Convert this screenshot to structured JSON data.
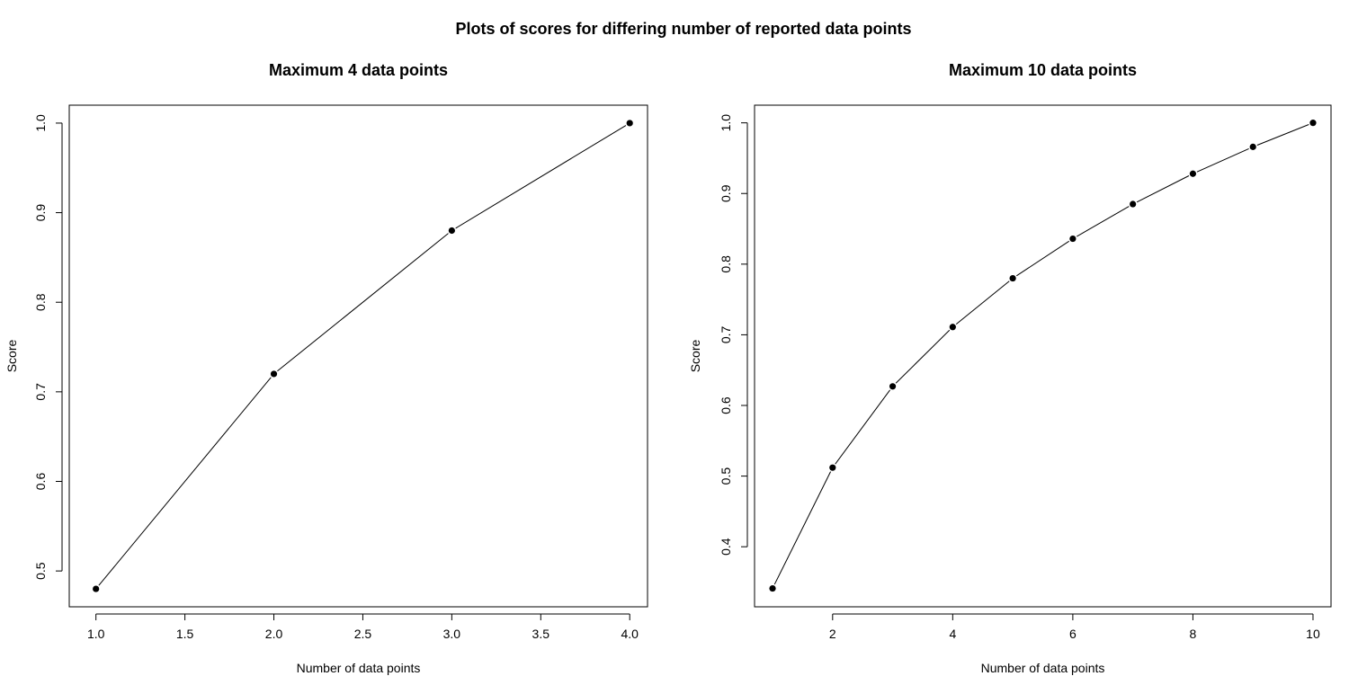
{
  "figure": {
    "title": "Plots of scores for differing number of reported data points"
  },
  "chart_data": [
    {
      "type": "line",
      "title": "Maximum 4 data points",
      "xlabel": "Number of data points",
      "ylabel": "Score",
      "x": [
        1,
        2,
        3,
        4
      ],
      "y": [
        0.48,
        0.72,
        0.88,
        1.0
      ],
      "xlim": [
        0.85,
        4.1
      ],
      "ylim": [
        0.46,
        1.02
      ],
      "xticks": [
        1.0,
        1.5,
        2.0,
        2.5,
        3.0,
        3.5,
        4.0
      ],
      "xtick_labels": [
        "1.0",
        "1.5",
        "2.0",
        "2.5",
        "3.0",
        "3.5",
        "4.0"
      ],
      "yticks": [
        0.5,
        0.6,
        0.7,
        0.8,
        0.9,
        1.0
      ],
      "ytick_labels": [
        "0.5",
        "0.6",
        "0.7",
        "0.8",
        "0.9",
        "1.0"
      ],
      "grid": false,
      "markers": "filled-circle",
      "line_color": "#000000"
    },
    {
      "type": "line",
      "title": "Maximum 10 data points",
      "xlabel": "Number of data points",
      "ylabel": "Score",
      "x": [
        1,
        2,
        3,
        4,
        5,
        6,
        7,
        8,
        9,
        10
      ],
      "y": [
        0.341,
        0.512,
        0.627,
        0.711,
        0.78,
        0.836,
        0.885,
        0.928,
        0.966,
        1.0
      ],
      "xlim": [
        0.7,
        10.3
      ],
      "ylim": [
        0.315,
        1.025
      ],
      "xticks": [
        2,
        4,
        6,
        8,
        10
      ],
      "xtick_labels": [
        "2",
        "4",
        "6",
        "8",
        "10"
      ],
      "yticks": [
        0.4,
        0.5,
        0.6,
        0.7,
        0.8,
        0.9,
        1.0
      ],
      "ytick_labels": [
        "0.4",
        "0.5",
        "0.6",
        "0.7",
        "0.8",
        "0.9",
        "1.0"
      ],
      "grid": false,
      "markers": "filled-circle",
      "line_color": "#000000"
    }
  ]
}
